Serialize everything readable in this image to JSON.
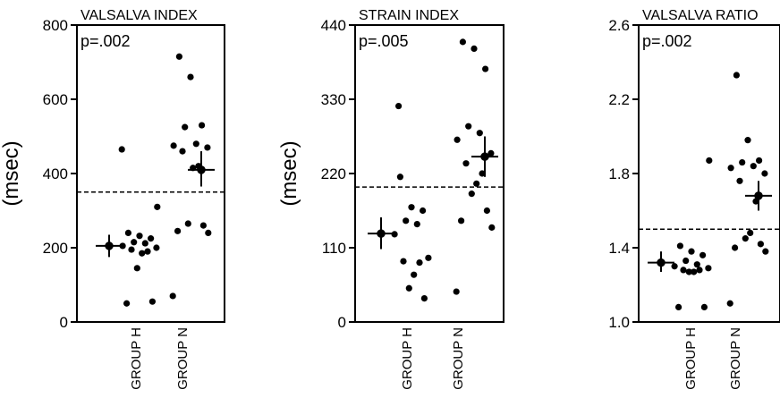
{
  "chart_data": [
    {
      "type": "scatter",
      "title": "VALSALVA INDEX",
      "ylabel": "(msec)",
      "annotation": "p=.002",
      "ylim": [
        0,
        800
      ],
      "yticks": [
        0,
        200,
        400,
        600,
        800
      ],
      "ytick_labels": [
        "0",
        "200",
        "400",
        "600",
        "800"
      ],
      "threshold": 350,
      "categories": [
        "GROUP H",
        "GROUP N"
      ],
      "series": [
        {
          "group": "GROUP H",
          "values": [
            240,
            232,
            225,
            215,
            212,
            205,
            200,
            195,
            190,
            185,
            145,
            55,
            50,
            310,
            465
          ],
          "mean": 205,
          "se_upper": 235,
          "se_lower": 175
        },
        {
          "group": "GROUP N",
          "values": [
            715,
            660,
            530,
            525,
            480,
            475,
            470,
            460,
            420,
            415,
            265,
            260,
            245,
            240,
            70
          ],
          "mean": 410,
          "se_upper": 460,
          "se_lower": 365
        }
      ]
    },
    {
      "type": "scatter",
      "title": "STRAIN INDEX",
      "ylabel": "(msec)",
      "annotation": "p=.005",
      "ylim": [
        0,
        440
      ],
      "yticks": [
        0,
        110,
        220,
        330,
        440
      ],
      "ytick_labels": [
        "0",
        "110",
        "220",
        "330",
        "440"
      ],
      "threshold": 200,
      "categories": [
        "GROUP H",
        "GROUP N"
      ],
      "series": [
        {
          "group": "GROUP H",
          "values": [
            215,
            170,
            165,
            150,
            145,
            130,
            95,
            90,
            88,
            70,
            50,
            35,
            320
          ],
          "mean": 131,
          "se_upper": 155,
          "se_lower": 108
        },
        {
          "group": "GROUP N",
          "values": [
            415,
            405,
            375,
            290,
            280,
            270,
            250,
            235,
            220,
            205,
            190,
            165,
            150,
            140,
            45
          ],
          "mean": 245,
          "se_upper": 275,
          "se_lower": 215
        }
      ]
    },
    {
      "type": "scatter",
      "title": "VALSALVA RATIO",
      "ylabel": "",
      "annotation": "p=.002",
      "ylim": [
        1.0,
        2.6
      ],
      "yticks": [
        1.0,
        1.4,
        1.8,
        2.2,
        2.6
      ],
      "ytick_labels": [
        "1.0",
        "1.4",
        "1.8",
        "2.2",
        "2.6"
      ],
      "threshold": 1.5,
      "categories": [
        "GROUP H",
        "GROUP N"
      ],
      "series": [
        {
          "group": "GROUP H",
          "values": [
            1.41,
            1.38,
            1.36,
            1.33,
            1.31,
            1.3,
            1.29,
            1.28,
            1.28,
            1.27,
            1.27,
            1.08,
            1.08,
            1.87
          ],
          "mean": 1.32,
          "se_upper": 1.38,
          "se_lower": 1.27
        },
        {
          "group": "GROUP N",
          "values": [
            2.33,
            1.98,
            1.87,
            1.86,
            1.84,
            1.83,
            1.8,
            1.76,
            1.65,
            1.48,
            1.45,
            1.42,
            1.4,
            1.38,
            1.1
          ],
          "mean": 1.68,
          "se_upper": 1.76,
          "se_lower": 1.6
        }
      ]
    }
  ]
}
